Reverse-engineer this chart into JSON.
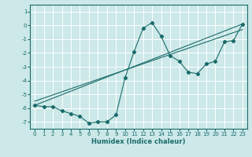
{
  "background_color": "#cce8e8",
  "grid_color": "#ffffff",
  "line_color": "#1a6b6b",
  "x_label": "Humidex (Indice chaleur)",
  "xlim": [
    -0.5,
    23.5
  ],
  "ylim": [
    -7.5,
    1.5
  ],
  "yticks": [
    1,
    0,
    -1,
    -2,
    -3,
    -4,
    -5,
    -6,
    -7
  ],
  "xticks": [
    0,
    1,
    2,
    3,
    4,
    5,
    6,
    7,
    8,
    9,
    10,
    11,
    12,
    13,
    14,
    15,
    16,
    17,
    18,
    19,
    20,
    21,
    22,
    23
  ],
  "series1_x": [
    0,
    1,
    2,
    3,
    4,
    5,
    6,
    7,
    8,
    9,
    10,
    11,
    12,
    13,
    14,
    15,
    16,
    17,
    18,
    19,
    20,
    21,
    22,
    23
  ],
  "series1_y": [
    -5.8,
    -5.9,
    -5.9,
    -6.2,
    -6.4,
    -6.6,
    -7.1,
    -7.0,
    -7.0,
    -6.5,
    -3.8,
    -1.9,
    -0.2,
    0.2,
    -0.8,
    -2.2,
    -2.6,
    -3.4,
    -3.5,
    -2.8,
    -2.6,
    -1.2,
    -1.1,
    0.1
  ],
  "series2_x": [
    0,
    23
  ],
  "series2_y": [
    -5.8,
    0.1
  ],
  "series3_x": [
    0,
    23
  ],
  "series3_y": [
    -5.5,
    -0.3
  ]
}
